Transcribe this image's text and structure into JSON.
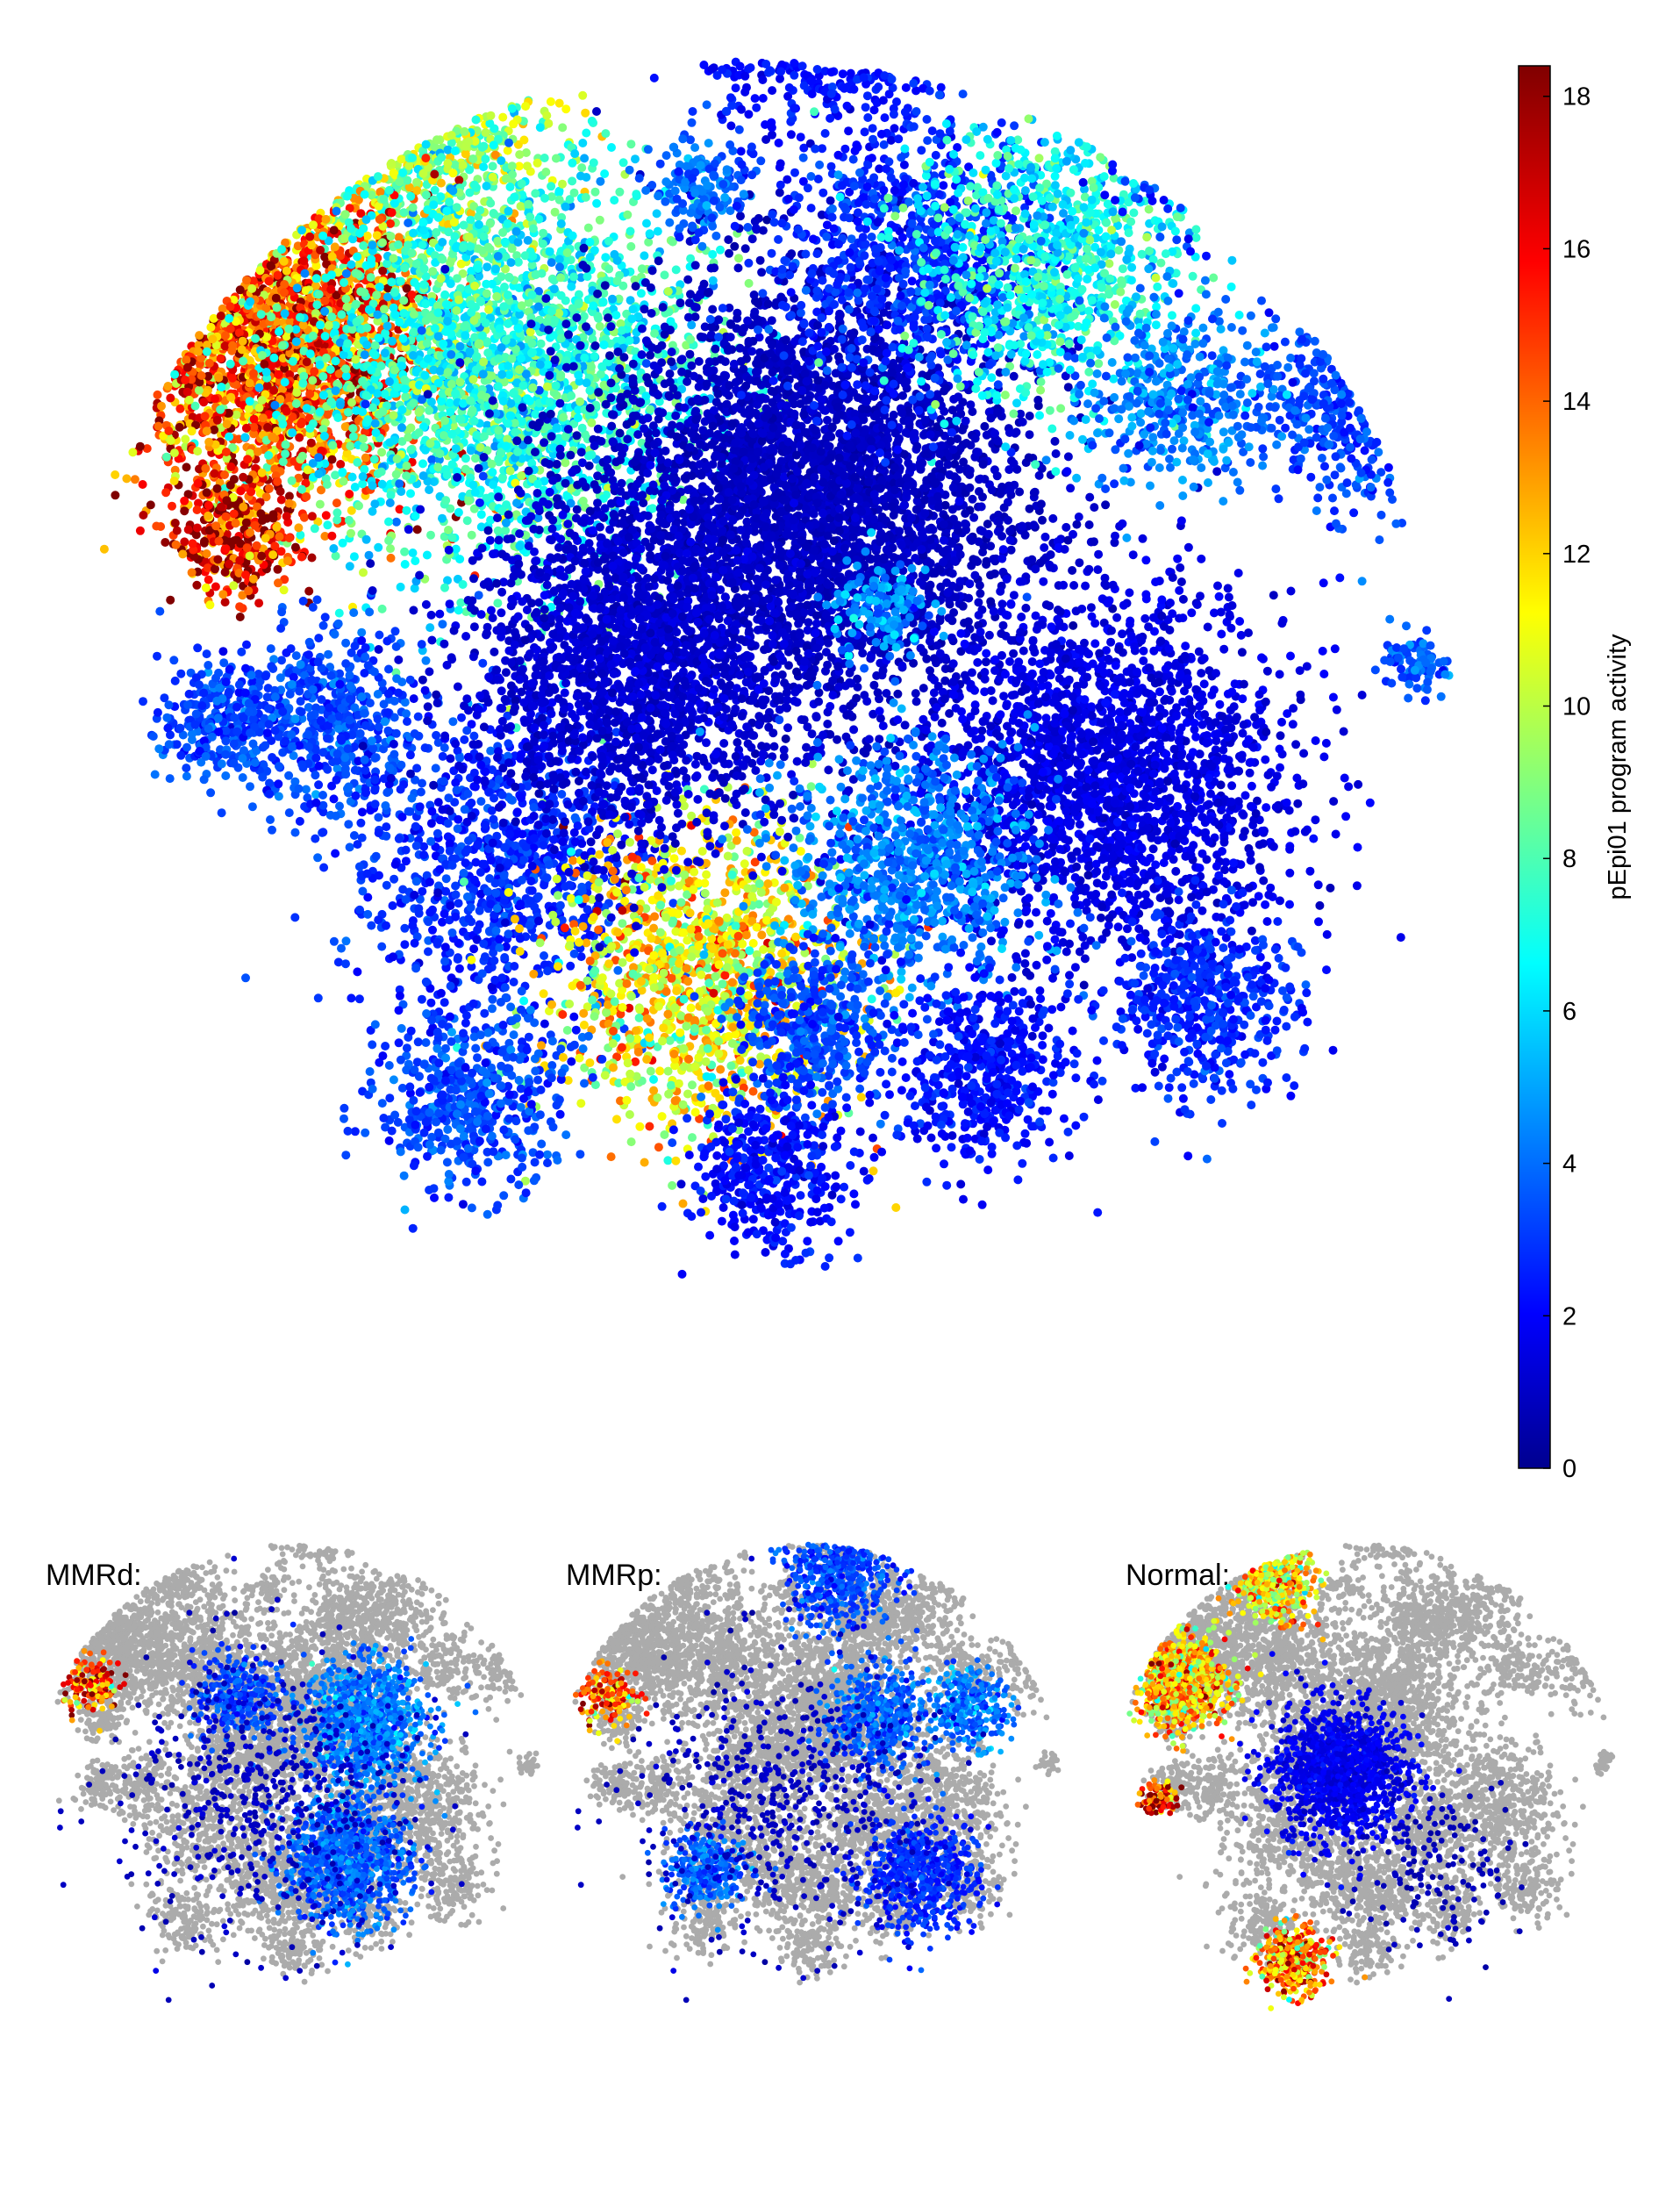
{
  "chart_data": [
    {
      "type": "scatter",
      "panel": "main",
      "title": "",
      "colorscale": "jet",
      "colorbar": {
        "label": "pEpi01 program activity",
        "range": [
          0,
          18.4
        ],
        "ticks": [
          "0",
          "2",
          "4",
          "6",
          "8",
          "10",
          "12",
          "14",
          "16",
          "18"
        ]
      },
      "clusters": [
        {
          "x": 2.5,
          "y": 9.6,
          "spread": 0.9,
          "n": 1400,
          "value": 9.5
        },
        {
          "x": 1.6,
          "y": 8.0,
          "spread": 1.0,
          "n": 2600,
          "value": 14.5
        },
        {
          "x": 3.2,
          "y": 7.8,
          "spread": 1.3,
          "n": 2600,
          "value": 7.5
        },
        {
          "x": 1.3,
          "y": 6.6,
          "spread": 0.4,
          "n": 300,
          "value": 16.5
        },
        {
          "x": 2.0,
          "y": 5.3,
          "spread": 0.6,
          "n": 500,
          "value": 3.5
        },
        {
          "x": 3.2,
          "y": 4.3,
          "spread": 1.0,
          "n": 1000,
          "value": 3.0
        },
        {
          "x": 4.6,
          "y": 3.5,
          "spread": 1.0,
          "n": 1300,
          "value": 11.5
        },
        {
          "x": 5.4,
          "y": 6.9,
          "spread": 1.4,
          "n": 3800,
          "value": 1.2
        },
        {
          "x": 4.1,
          "y": 5.7,
          "spread": 1.1,
          "n": 1900,
          "value": 1.5
        },
        {
          "x": 5.5,
          "y": 10.4,
          "spread": 0.8,
          "n": 1200,
          "value": 2.5
        },
        {
          "x": 6.1,
          "y": 11.9,
          "spread": 0.4,
          "n": 300,
          "value": 3.5
        },
        {
          "x": 3.9,
          "y": 11.0,
          "spread": 0.4,
          "n": 200,
          "value": 2.0
        },
        {
          "x": 4.6,
          "y": 9.1,
          "spread": 0.3,
          "n": 150,
          "value": 4.0
        },
        {
          "x": 6.1,
          "y": 8.6,
          "spread": 0.9,
          "n": 900,
          "value": 3.0
        },
        {
          "x": 7.1,
          "y": 8.6,
          "spread": 0.9,
          "n": 1000,
          "value": 7.0
        },
        {
          "x": 8.2,
          "y": 9.4,
          "spread": 0.5,
          "n": 400,
          "value": 3.0
        },
        {
          "x": 8.9,
          "y": 10.1,
          "spread": 0.5,
          "n": 300,
          "value": 2.5
        },
        {
          "x": 9.3,
          "y": 7.6,
          "spread": 0.7,
          "n": 600,
          "value": 3.5
        },
        {
          "x": 8.0,
          "y": 7.6,
          "spread": 0.6,
          "n": 400,
          "value": 4.5
        },
        {
          "x": 7.5,
          "y": 4.9,
          "spread": 1.2,
          "n": 2200,
          "value": 1.8
        },
        {
          "x": 6.1,
          "y": 4.3,
          "spread": 0.8,
          "n": 900,
          "value": 4.5
        },
        {
          "x": 5.4,
          "y": 3.1,
          "spread": 0.5,
          "n": 400,
          "value": 3.5
        },
        {
          "x": 6.6,
          "y": 2.8,
          "spread": 0.6,
          "n": 500,
          "value": 2.5
        },
        {
          "x": 5.1,
          "y": 2.1,
          "spread": 0.5,
          "n": 400,
          "value": 2.5
        },
        {
          "x": 8.2,
          "y": 3.3,
          "spread": 0.6,
          "n": 500,
          "value": 3.0
        },
        {
          "x": 1.2,
          "y": 5.3,
          "spread": 0.4,
          "n": 300,
          "value": 3.5
        },
        {
          "x": 7.0,
          "y": 12.4,
          "spread": 0.3,
          "n": 150,
          "value": 2.0
        },
        {
          "x": 5.9,
          "y": 6.1,
          "spread": 0.3,
          "n": 150,
          "value": 5.0
        },
        {
          "x": 9.7,
          "y": 5.7,
          "spread": 0.2,
          "n": 100,
          "value": 4.0
        },
        {
          "x": 3.0,
          "y": 2.6,
          "spread": 0.6,
          "n": 500,
          "value": 3.5
        }
      ]
    },
    {
      "type": "scatter",
      "panel": "MMRd",
      "title": "MMRd:",
      "highlight": [
        {
          "x": 6.5,
          "y": 6.5,
          "spread": 1.1,
          "n": 900,
          "value": 4.5
        },
        {
          "x": 6.1,
          "y": 3.8,
          "spread": 1.1,
          "n": 900,
          "value": 4.0
        },
        {
          "x": 4.0,
          "y": 7.0,
          "spread": 0.8,
          "n": 300,
          "value": 3.5
        },
        {
          "x": 1.1,
          "y": 7.2,
          "spread": 0.5,
          "n": 150,
          "value": 15.0
        },
        {
          "x": 4.5,
          "y": 5.0,
          "spread": 2.6,
          "n": 500,
          "value": 1.2
        }
      ]
    },
    {
      "type": "scatter",
      "panel": "MMRp",
      "title": "MMRp:",
      "highlight": [
        {
          "x": 5.6,
          "y": 9.5,
          "spread": 1.0,
          "n": 600,
          "value": 3.5
        },
        {
          "x": 6.4,
          "y": 6.6,
          "spread": 0.9,
          "n": 500,
          "value": 4.0
        },
        {
          "x": 8.2,
          "y": 6.8,
          "spread": 0.7,
          "n": 300,
          "value": 4.5
        },
        {
          "x": 7.2,
          "y": 3.5,
          "spread": 1.0,
          "n": 600,
          "value": 3.0
        },
        {
          "x": 3.0,
          "y": 3.6,
          "spread": 0.7,
          "n": 300,
          "value": 4.0
        },
        {
          "x": 1.1,
          "y": 7.0,
          "spread": 0.5,
          "n": 150,
          "value": 14.5
        },
        {
          "x": 4.5,
          "y": 5.0,
          "spread": 2.6,
          "n": 500,
          "value": 1.2
        }
      ]
    },
    {
      "type": "scatter",
      "panel": "Normal",
      "title": "Normal:",
      "highlight": [
        {
          "x": 1.4,
          "y": 7.3,
          "spread": 0.8,
          "n": 900,
          "value": 12.5
        },
        {
          "x": 3.2,
          "y": 9.3,
          "spread": 0.7,
          "n": 500,
          "value": 12.0
        },
        {
          "x": 4.5,
          "y": 5.5,
          "spread": 1.2,
          "n": 1200,
          "value": 2.0
        },
        {
          "x": 3.6,
          "y": 1.8,
          "spread": 0.6,
          "n": 400,
          "value": 13.5
        },
        {
          "x": 1.0,
          "y": 5.0,
          "spread": 0.3,
          "n": 100,
          "value": 16.0
        },
        {
          "x": 6.5,
          "y": 3.5,
          "spread": 1.5,
          "n": 150,
          "value": 1.0
        }
      ]
    }
  ]
}
